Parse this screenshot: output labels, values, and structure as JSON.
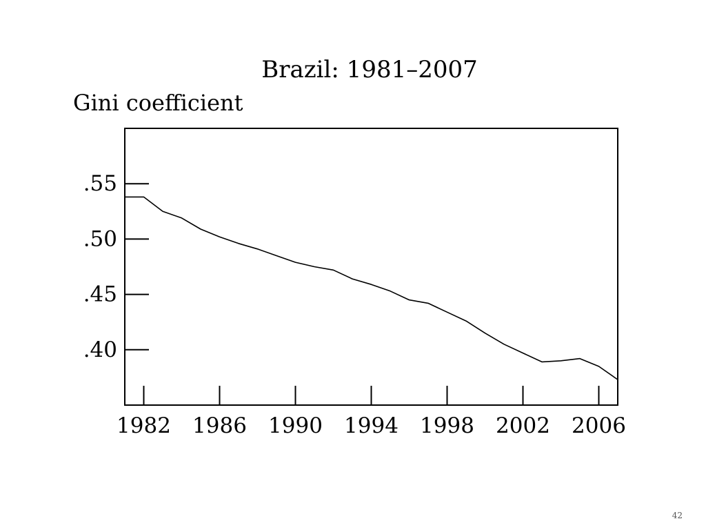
{
  "chart_data": {
    "type": "line",
    "title": "Brazil: 1981–2007",
    "ylabel": "Gini coefficient",
    "xlabel": "",
    "xlim": [
      1981,
      2007
    ],
    "ylim": [
      0.35,
      0.6
    ],
    "x_ticks": [
      1982,
      1986,
      1990,
      1994,
      1998,
      2002,
      2006
    ],
    "x_tick_labels": [
      "1982",
      "1986",
      "1990",
      "1994",
      "1998",
      "2002",
      "2006"
    ],
    "y_ticks": [
      0.4,
      0.45,
      0.5,
      0.55
    ],
    "y_tick_labels": [
      ".40",
      ".45",
      ".50",
      ".55"
    ],
    "grid": false,
    "series": [
      {
        "x": [
          1981,
          1982,
          1983,
          1984,
          1985,
          1986,
          1987,
          1988,
          1989,
          1990,
          1991,
          1992,
          1993,
          1994,
          1995,
          1996,
          1997,
          1998,
          1999,
          2000,
          2001,
          2002,
          2003,
          2004,
          2005,
          2006,
          2007
        ],
        "values": [
          0.538,
          0.538,
          0.525,
          0.519,
          0.509,
          0.502,
          0.496,
          0.491,
          0.485,
          0.479,
          0.475,
          0.472,
          0.464,
          0.459,
          0.453,
          0.445,
          0.442,
          0.434,
          0.426,
          0.415,
          0.405,
          0.397,
          0.389,
          0.39,
          0.392,
          0.385,
          0.373
        ]
      }
    ],
    "line_color": "#000000"
  },
  "page_number": "42"
}
